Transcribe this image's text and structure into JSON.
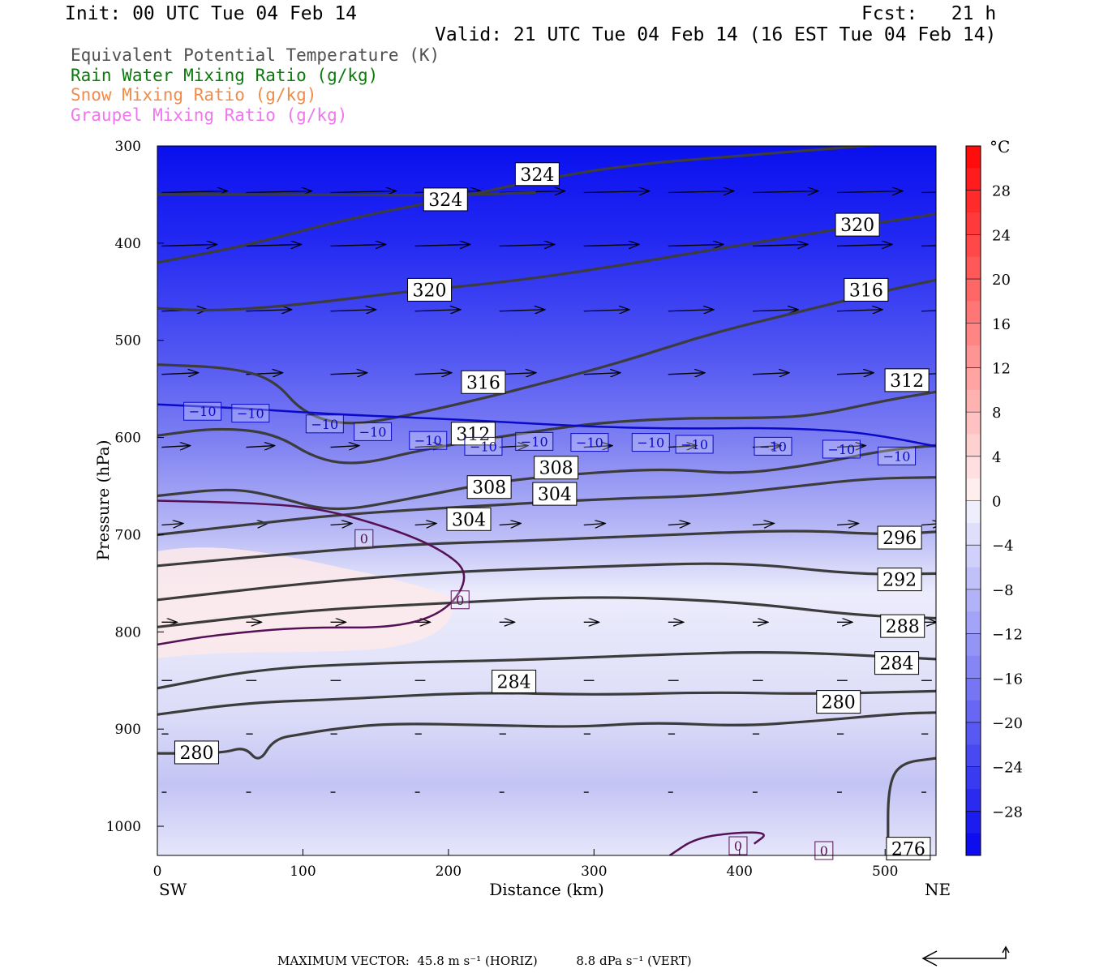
{
  "header": {
    "init": "Init: 00 UTC Tue 04 Feb 14",
    "fcst": "Fcst:   21 h",
    "valid": "Valid: 21 UTC Tue 04 Feb 14 (16 EST Tue 04 Feb 14)"
  },
  "variables": [
    {
      "label": "Equivalent Potential Temperature (K)",
      "color": "#505050"
    },
    {
      "label": "Rain Water Mixing Ratio (g/kg)",
      "color": "#0b7a0b"
    },
    {
      "label": "Snow Mixing Ratio (g/kg)",
      "color": "#f08c4a"
    },
    {
      "label": "Graupel Mixing Ratio (g/kg)",
      "color": "#ee77ee"
    }
  ],
  "footer": {
    "label": "MAXIMUM VECTOR:",
    "horiz": "45.8 m s⁻¹ (HORIZ)",
    "vert": "8.8 dPa s⁻¹ (VERT)"
  },
  "chart_data": {
    "type": "contour",
    "xlabel": "Distance (km)",
    "ylabel": "Pressure (hPa)",
    "x_ticks": [
      0,
      100,
      200,
      300,
      400,
      500
    ],
    "xlim": [
      0,
      535
    ],
    "y_ticks": [
      300,
      400,
      500,
      600,
      700,
      800,
      900,
      1000
    ],
    "ylim": [
      1030,
      300
    ],
    "x_end_labels": {
      "left": "SW",
      "right": "NE"
    },
    "colorbar": {
      "unit": "°C",
      "tick_labels": [
        "28",
        "24",
        "20",
        "16",
        "12",
        "8",
        "4",
        "0",
        "−4",
        "−8",
        "−12",
        "−16",
        "−20",
        "−24",
        "−28"
      ],
      "tick_values": [
        28,
        24,
        20,
        16,
        12,
        8,
        4,
        0,
        -4,
        -8,
        -12,
        -16,
        -20,
        -24,
        -28
      ],
      "range": [
        -32,
        32
      ]
    },
    "theta_e_contours": [
      {
        "label": "324",
        "points": [
          [
            0,
            420
          ],
          [
            60,
            403
          ],
          [
            130,
            375
          ],
          [
            210,
            352
          ],
          [
            255,
            337
          ],
          [
            320,
            320
          ],
          [
            400,
            310
          ],
          [
            470,
            302
          ],
          [
            500,
            298
          ]
        ],
        "labels": [
          [
            261,
            329
          ]
        ]
      },
      {
        "label": "324",
        "points": [
          [
            0,
            350
          ],
          [
            100,
            350
          ],
          [
            200,
            351
          ],
          [
            260,
            348
          ]
        ],
        "labels": [
          [
            198,
            355
          ]
        ]
      },
      {
        "label": "320",
        "points": [
          [
            0,
            467
          ],
          [
            40,
            470
          ],
          [
            100,
            463
          ],
          [
            170,
            450
          ],
          [
            240,
            440
          ],
          [
            310,
            425
          ],
          [
            400,
            402
          ],
          [
            470,
            385
          ],
          [
            535,
            370
          ]
        ],
        "labels": [
          [
            187,
            448
          ],
          [
            481,
            381
          ]
        ]
      },
      {
        "label": "316",
        "points": [
          [
            0,
            525
          ],
          [
            50,
            528
          ],
          [
            80,
            540
          ],
          [
            100,
            575
          ],
          [
            130,
            588
          ],
          [
            170,
            578
          ],
          [
            220,
            561
          ],
          [
            260,
            546
          ],
          [
            320,
            522
          ],
          [
            380,
            493
          ],
          [
            440,
            471
          ],
          [
            500,
            449
          ],
          [
            535,
            438
          ]
        ],
        "labels": [
          [
            224,
            543
          ],
          [
            487,
            448
          ]
        ]
      },
      {
        "label": "312",
        "points": [
          [
            0,
            598
          ],
          [
            40,
            590
          ],
          [
            80,
            595
          ],
          [
            110,
            623
          ],
          [
            140,
            628
          ],
          [
            180,
            613
          ],
          [
            240,
            598
          ],
          [
            300,
            585
          ],
          [
            360,
            580
          ],
          [
            410,
            580
          ],
          [
            450,
            578
          ],
          [
            500,
            562
          ],
          [
            535,
            553
          ]
        ],
        "labels": [
          [
            217,
            596
          ],
          [
            515,
            541
          ]
        ]
      },
      {
        "label": "308",
        "points": [
          [
            0,
            660
          ],
          [
            50,
            652
          ],
          [
            80,
            660
          ],
          [
            120,
            677
          ],
          [
            170,
            664
          ],
          [
            230,
            646
          ],
          [
            290,
            637
          ],
          [
            350,
            632
          ],
          [
            400,
            638
          ],
          [
            450,
            628
          ],
          [
            500,
            613
          ],
          [
            535,
            608
          ]
        ],
        "labels": [
          [
            228,
            651
          ],
          [
            274,
            631
          ]
        ]
      },
      {
        "label": "304",
        "points": [
          [
            0,
            700
          ],
          [
            60,
            690
          ],
          [
            120,
            680
          ],
          [
            190,
            673
          ],
          [
            250,
            668
          ],
          [
            310,
            663
          ],
          [
            380,
            660
          ],
          [
            440,
            650
          ],
          [
            490,
            642
          ],
          [
            535,
            641
          ]
        ],
        "labels": [
          [
            214,
            684
          ],
          [
            273,
            658
          ]
        ]
      },
      {
        "label": "296",
        "points": [
          [
            0,
            732
          ],
          [
            80,
            721
          ],
          [
            170,
            710
          ],
          [
            260,
            706
          ],
          [
            350,
            700
          ],
          [
            440,
            695
          ],
          [
            500,
            700
          ],
          [
            535,
            697
          ]
        ],
        "labels": [
          [
            510,
            703
          ]
        ]
      },
      {
        "label": "292",
        "points": [
          [
            0,
            767
          ],
          [
            100,
            750
          ],
          [
            200,
            738
          ],
          [
            300,
            733
          ],
          [
            400,
            728
          ],
          [
            480,
            741
          ],
          [
            535,
            740
          ]
        ],
        "labels": [
          [
            510,
            746
          ]
        ]
      },
      {
        "label": "288",
        "points": [
          [
            0,
            795
          ],
          [
            100,
            778
          ],
          [
            200,
            770
          ],
          [
            300,
            763
          ],
          [
            400,
            769
          ],
          [
            480,
            783
          ],
          [
            535,
            786
          ]
        ],
        "labels": [
          [
            512,
            794
          ]
        ]
      },
      {
        "label": "284",
        "points": [
          [
            0,
            858
          ],
          [
            70,
            838
          ],
          [
            150,
            832
          ],
          [
            250,
            829
          ],
          [
            350,
            823
          ],
          [
            430,
            820
          ],
          [
            535,
            828
          ]
        ],
        "labels": [
          [
            245,
            851
          ],
          [
            508,
            832
          ]
        ]
      },
      {
        "label": "280",
        "points": [
          [
            0,
            885
          ],
          [
            60,
            873
          ],
          [
            130,
            869
          ],
          [
            220,
            862
          ],
          [
            300,
            865
          ],
          [
            380,
            862
          ],
          [
            450,
            864
          ],
          [
            535,
            861
          ]
        ],
        "labels": [
          [
            468,
            872
          ]
        ]
      },
      {
        "label": "280",
        "points": [
          [
            0,
            925
          ],
          [
            45,
            925
          ],
          [
            60,
            918
          ],
          [
            70,
            935
          ],
          [
            80,
            910
          ],
          [
            100,
            905
          ],
          [
            120,
            900
          ],
          [
            160,
            894
          ],
          [
            230,
            896
          ],
          [
            290,
            898
          ],
          [
            340,
            893
          ],
          [
            400,
            897
          ],
          [
            450,
            892
          ],
          [
            510,
            884
          ],
          [
            535,
            883
          ]
        ],
        "labels": [
          [
            27,
            924
          ]
        ]
      },
      {
        "label": "276",
        "points": [
          [
            502,
            1022
          ],
          [
            502,
            960
          ],
          [
            510,
            935
          ],
          [
            535,
            930
          ]
        ],
        "labels": [
          [
            516,
            1023
          ]
        ]
      }
    ],
    "temperature_contours": [
      {
        "label": "-10",
        "color": "#0a0ac8",
        "points": [
          [
            0,
            566
          ],
          [
            60,
            570
          ],
          [
            120,
            576
          ],
          [
            200,
            581
          ],
          [
            250,
            585
          ],
          [
            300,
            589
          ],
          [
            360,
            591
          ],
          [
            420,
            590
          ],
          [
            470,
            593
          ],
          [
            500,
            599
          ],
          [
            535,
            609
          ]
        ],
        "labels": [
          [
            31,
            573
          ],
          [
            64,
            575
          ],
          [
            115,
            586
          ],
          [
            148,
            594
          ],
          [
            186,
            603
          ],
          [
            224,
            609
          ],
          [
            259,
            604
          ],
          [
            297,
            605
          ],
          [
            339,
            605
          ],
          [
            369,
            607
          ],
          [
            423,
            609
          ],
          [
            470,
            612
          ],
          [
            508,
            619
          ]
        ]
      },
      {
        "label": "0",
        "color": "#551155",
        "points": [
          [
            0,
            665
          ],
          [
            60,
            667
          ],
          [
            110,
            672
          ],
          [
            160,
            693
          ],
          [
            195,
            715
          ],
          [
            215,
            740
          ],
          [
            200,
            778
          ],
          [
            165,
            796
          ],
          [
            100,
            795
          ],
          [
            40,
            803
          ],
          [
            0,
            813
          ]
        ],
        "labels": [
          [
            142,
            704
          ],
          [
            208,
            767
          ]
        ]
      },
      {
        "label": "0",
        "color": "#551155",
        "points": [
          [
            352,
            1030
          ],
          [
            370,
            1012
          ],
          [
            400,
            1006
          ],
          [
            420,
            1007
          ],
          [
            410,
            1018
          ]
        ],
        "labels": [
          [
            399,
            1020
          ],
          [
            458,
            1025
          ]
        ]
      }
    ],
    "wind_vectors": {
      "rows_hpa": [
        348,
        403,
        470,
        535,
        610,
        690,
        790,
        850,
        905,
        965
      ],
      "columns_km": [
        0,
        58,
        116,
        174,
        232,
        290,
        348,
        406,
        464,
        522
      ]
    }
  }
}
